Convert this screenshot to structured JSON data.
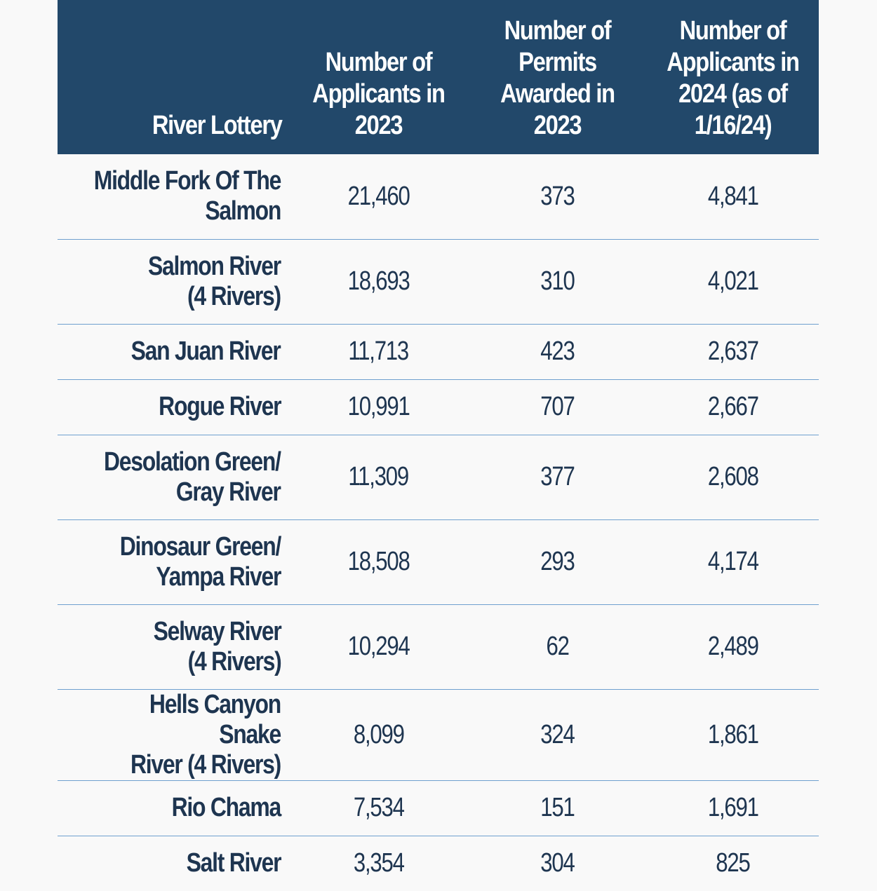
{
  "table": {
    "headers": [
      "River Lottery",
      "Number of\nApplicants in\n2023",
      "Number of\nPermits\nAwarded in\n2023",
      "Number of\nApplicants in\n2024 (as of\n1/16/24)"
    ],
    "rows": [
      {
        "river": "Middle Fork Of The\nSalmon",
        "applicants_2023": "21,460",
        "permits_2023": "373",
        "applicants_2024": "4,841"
      },
      {
        "river": "Salmon River\n(4 Rivers)",
        "applicants_2023": "18,693",
        "permits_2023": "310",
        "applicants_2024": "4,021"
      },
      {
        "river": "San Juan River",
        "applicants_2023": "11,713",
        "permits_2023": "423",
        "applicants_2024": "2,637"
      },
      {
        "river": "Rogue River",
        "applicants_2023": "10,991",
        "permits_2023": "707",
        "applicants_2024": "2,667"
      },
      {
        "river": "Desolation Green/\nGray River",
        "applicants_2023": "11,309",
        "permits_2023": "377",
        "applicants_2024": "2,608"
      },
      {
        "river": "Dinosaur Green/\nYampa River",
        "applicants_2023": "18,508",
        "permits_2023": "293",
        "applicants_2024": "4,174"
      },
      {
        "river": "Selway River\n(4 Rivers)",
        "applicants_2023": "10,294",
        "permits_2023": "62",
        "applicants_2024": "2,489"
      },
      {
        "river": "Hells Canyon Snake\nRiver (4 Rivers)",
        "applicants_2023": "8,099",
        "permits_2023": "324",
        "applicants_2024": "1,861"
      },
      {
        "river": "Rio Chama",
        "applicants_2023": "7,534",
        "permits_2023": "151",
        "applicants_2024": "1,691"
      },
      {
        "river": "Salt River",
        "applicants_2023": "3,354",
        "permits_2023": "304",
        "applicants_2024": "825"
      }
    ]
  },
  "colors": {
    "header_bg": "#22486a",
    "header_text": "#ffffff",
    "body_text": "#1e3550",
    "row_divider": "#6fa0cf",
    "page_bg": "#f9f9f9"
  }
}
